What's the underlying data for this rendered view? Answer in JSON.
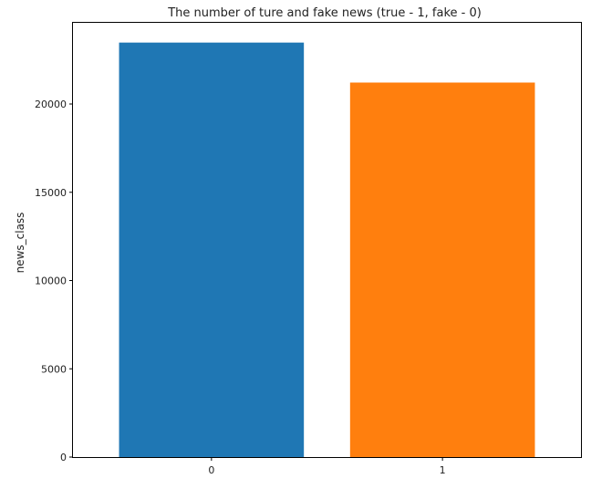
{
  "chart_data": {
    "type": "bar",
    "title": "The number of ture and fake news (true - 1, fake - 0)",
    "xlabel": "",
    "ylabel": "news_class",
    "categories": [
      "0",
      "1"
    ],
    "values": [
      23480,
      21215
    ],
    "colors": [
      "#1f77b4",
      "#ff7f0e"
    ],
    "ylim": [
      0,
      24600
    ],
    "yticks": [
      0,
      5000,
      10000,
      15000,
      20000
    ],
    "grid": false,
    "legend": "none"
  }
}
